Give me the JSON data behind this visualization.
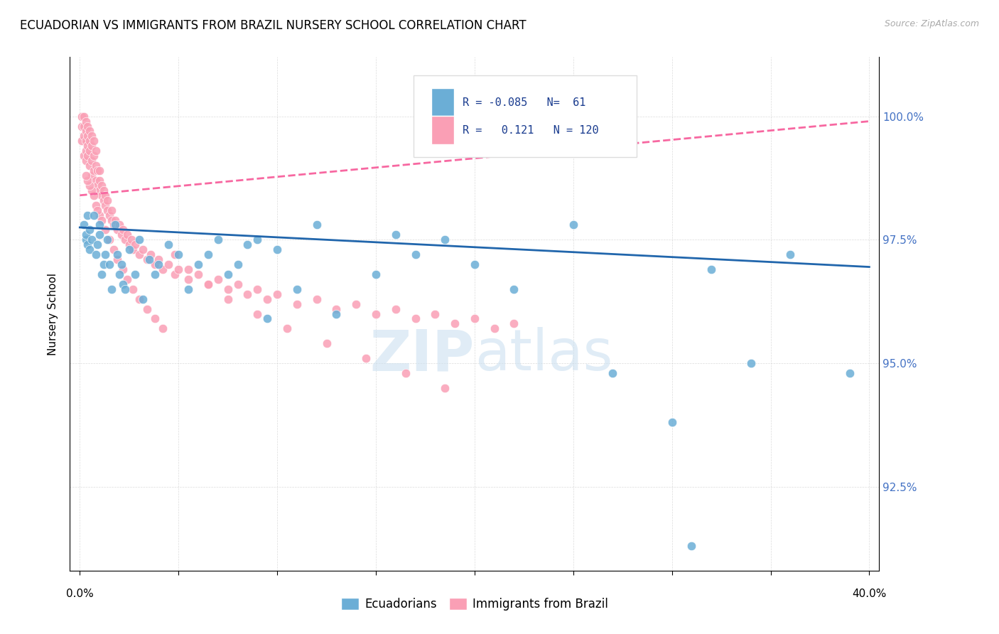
{
  "title": "ECUADORIAN VS IMMIGRANTS FROM BRAZIL NURSERY SCHOOL CORRELATION CHART",
  "source": "Source: ZipAtlas.com",
  "ylabel": "Nursery School",
  "legend_blue_R": "-0.085",
  "legend_blue_N": "61",
  "legend_pink_R": "0.121",
  "legend_pink_N": "120",
  "blue_color": "#6baed6",
  "pink_color": "#fa9fb5",
  "blue_line_color": "#2166ac",
  "pink_line_color": "#f768a1",
  "blue_scatter_x": [
    0.002,
    0.003,
    0.003,
    0.004,
    0.004,
    0.005,
    0.005,
    0.006,
    0.007,
    0.008,
    0.009,
    0.01,
    0.01,
    0.011,
    0.012,
    0.013,
    0.014,
    0.015,
    0.016,
    0.018,
    0.019,
    0.02,
    0.021,
    0.022,
    0.023,
    0.025,
    0.028,
    0.03,
    0.032,
    0.035,
    0.038,
    0.04,
    0.045,
    0.05,
    0.055,
    0.06,
    0.065,
    0.07,
    0.075,
    0.08,
    0.085,
    0.09,
    0.095,
    0.1,
    0.11,
    0.12,
    0.13,
    0.15,
    0.16,
    0.17,
    0.185,
    0.2,
    0.22,
    0.25,
    0.27,
    0.3,
    0.32,
    0.34,
    0.36,
    0.39,
    0.31
  ],
  "blue_scatter_y": [
    97.8,
    97.5,
    97.6,
    97.4,
    98.0,
    97.7,
    97.3,
    97.5,
    98.0,
    97.2,
    97.4,
    97.6,
    97.8,
    96.8,
    97.0,
    97.2,
    97.5,
    97.0,
    96.5,
    97.8,
    97.2,
    96.8,
    97.0,
    96.6,
    96.5,
    97.3,
    96.8,
    97.5,
    96.3,
    97.1,
    96.8,
    97.0,
    97.4,
    97.2,
    96.5,
    97.0,
    97.2,
    97.5,
    96.8,
    97.0,
    97.4,
    97.5,
    95.9,
    97.3,
    96.5,
    97.8,
    96.0,
    96.8,
    97.6,
    97.2,
    97.5,
    97.0,
    96.5,
    97.8,
    94.8,
    93.8,
    96.9,
    95.0,
    97.2,
    94.8,
    91.3
  ],
  "pink_scatter_x": [
    0.001,
    0.001,
    0.001,
    0.002,
    0.002,
    0.002,
    0.002,
    0.003,
    0.003,
    0.003,
    0.003,
    0.003,
    0.004,
    0.004,
    0.004,
    0.004,
    0.005,
    0.005,
    0.005,
    0.005,
    0.006,
    0.006,
    0.006,
    0.006,
    0.007,
    0.007,
    0.007,
    0.008,
    0.008,
    0.008,
    0.009,
    0.009,
    0.01,
    0.01,
    0.01,
    0.011,
    0.011,
    0.012,
    0.012,
    0.013,
    0.013,
    0.014,
    0.014,
    0.015,
    0.016,
    0.016,
    0.017,
    0.018,
    0.019,
    0.02,
    0.021,
    0.022,
    0.023,
    0.024,
    0.025,
    0.026,
    0.027,
    0.028,
    0.03,
    0.032,
    0.034,
    0.036,
    0.038,
    0.04,
    0.042,
    0.045,
    0.048,
    0.05,
    0.055,
    0.06,
    0.065,
    0.07,
    0.075,
    0.08,
    0.085,
    0.09,
    0.095,
    0.1,
    0.11,
    0.12,
    0.13,
    0.14,
    0.15,
    0.16,
    0.17,
    0.18,
    0.19,
    0.2,
    0.21,
    0.22,
    0.01,
    0.008,
    0.007,
    0.006,
    0.005,
    0.004,
    0.003,
    0.009,
    0.011,
    0.013,
    0.015,
    0.017,
    0.019,
    0.022,
    0.024,
    0.027,
    0.03,
    0.034,
    0.038,
    0.042,
    0.048,
    0.055,
    0.065,
    0.075,
    0.09,
    0.105,
    0.125,
    0.145,
    0.165,
    0.185
  ],
  "pink_scatter_y": [
    99.5,
    99.8,
    100.0,
    99.2,
    99.6,
    100.0,
    99.8,
    99.3,
    99.5,
    99.7,
    99.9,
    99.1,
    99.2,
    99.4,
    99.6,
    99.8,
    99.0,
    99.3,
    99.5,
    99.7,
    98.8,
    99.1,
    99.4,
    99.6,
    98.9,
    99.2,
    99.5,
    98.7,
    99.0,
    99.3,
    98.6,
    98.9,
    98.5,
    98.7,
    98.9,
    98.4,
    98.6,
    98.3,
    98.5,
    98.2,
    98.4,
    98.1,
    98.3,
    98.0,
    97.9,
    98.1,
    97.8,
    97.9,
    97.7,
    97.8,
    97.6,
    97.7,
    97.5,
    97.6,
    97.4,
    97.5,
    97.3,
    97.4,
    97.2,
    97.3,
    97.1,
    97.2,
    97.0,
    97.1,
    96.9,
    97.0,
    96.8,
    96.9,
    96.7,
    96.8,
    96.6,
    96.7,
    96.5,
    96.6,
    96.4,
    96.5,
    96.3,
    96.4,
    96.2,
    96.3,
    96.1,
    96.2,
    96.0,
    96.1,
    95.9,
    96.0,
    95.8,
    95.9,
    95.7,
    95.8,
    98.0,
    98.2,
    98.4,
    98.5,
    98.6,
    98.7,
    98.8,
    98.1,
    97.9,
    97.7,
    97.5,
    97.3,
    97.1,
    96.9,
    96.7,
    96.5,
    96.3,
    96.1,
    95.9,
    95.7,
    97.2,
    96.9,
    96.6,
    96.3,
    96.0,
    95.7,
    95.4,
    95.1,
    94.8,
    94.5
  ],
  "xlim": [
    -0.005,
    0.405
  ],
  "ylim": [
    90.8,
    101.2
  ],
  "ytick_vals": [
    92.5,
    95.0,
    97.5,
    100.0
  ],
  "blue_trend_x": [
    0.0,
    0.4
  ],
  "blue_trend_y": [
    97.75,
    96.95
  ],
  "pink_trend_x": [
    0.0,
    0.4
  ],
  "pink_trend_y": [
    98.4,
    99.9
  ]
}
